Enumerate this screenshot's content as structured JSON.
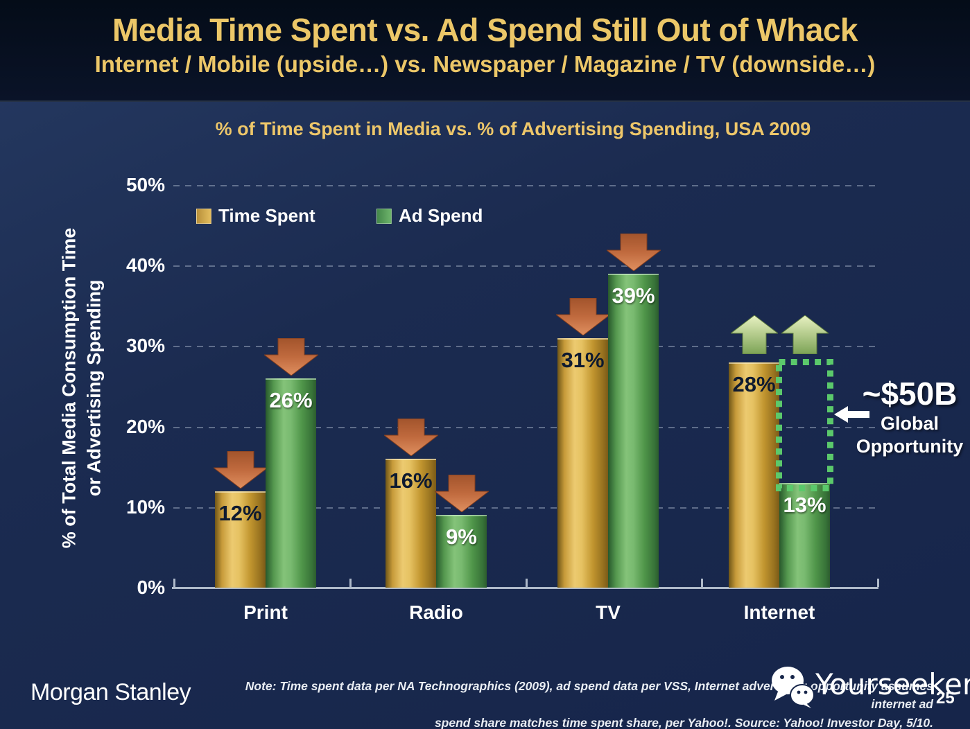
{
  "header": {
    "title": "Media Time Spent vs. Ad Spend Still Out of Whack",
    "subtitle": "Internet / Mobile (upside…) vs. Newspaper / Magazine / TV (downside…)"
  },
  "chart_data": {
    "type": "bar",
    "title": "% of Time Spent in Media vs. % of Advertising Spending, USA 2009",
    "ylabel_line1": "% of Total Media Consumption Time",
    "ylabel_line2": "or Advertising Spending",
    "categories": [
      "Print",
      "Radio",
      "TV",
      "Internet"
    ],
    "series": [
      {
        "name": "Time Spent",
        "color_hex": "#d4a73f",
        "values": [
          12,
          16,
          31,
          28
        ],
        "trend_arrows": [
          "down",
          "down",
          "down",
          "up"
        ]
      },
      {
        "name": "Ad Spend",
        "color_hex": "#5aa95d",
        "values": [
          26,
          9,
          39,
          13
        ],
        "trend_arrows": [
          "down",
          "down",
          "down",
          "up"
        ]
      }
    ],
    "value_label_suffix": "%",
    "ylim": [
      0,
      50
    ],
    "ytick_step": 10,
    "yticks": [
      "0%",
      "10%",
      "20%",
      "30%",
      "40%",
      "50%"
    ],
    "grid": "horizontal-dashed",
    "legend_position": "top-left-inside",
    "down_arrow_color_hex": "#c06a3e",
    "up_arrow_color_hex": "#a8c87a",
    "annotation": {
      "value": "~$50B",
      "line1": "Global",
      "line2": "Opportunity",
      "target": "gap between Internet ad spend 13% and time spent 28%",
      "box_color_hex": "#5bc96b"
    }
  },
  "footer": {
    "logo": "Morgan Stanley",
    "note_line1": "Note: Time spent data per NA Technographics (2009), ad spend data per VSS, Internet advertising opportunity assumes internet ad",
    "note_line2": "spend share matches time spent share, per Yahoo!. Source: Yahoo! Investor Day, 5/10.",
    "page_number": "25",
    "watermark": "Yourseeker",
    "watermark_icon": "wechat-icon"
  }
}
